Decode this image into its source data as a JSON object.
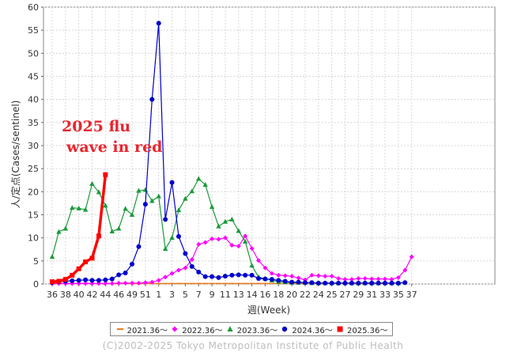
{
  "chart_data": {
    "type": "line",
    "xlabel": "週(Week)",
    "ylabel": "人/定点(Cases/sentinel)",
    "ylim": [
      0,
      60
    ],
    "yticks": [
      0,
      5,
      10,
      15,
      20,
      25,
      30,
      35,
      40,
      45,
      50,
      55,
      60
    ],
    "x_tick_labels": [
      "36",
      "38",
      "40",
      "42",
      "44",
      "46",
      "49",
      "51",
      "1",
      "3",
      "5",
      "7",
      "9",
      "11",
      "13",
      "14",
      "16",
      "18",
      "20",
      "22",
      "24",
      "25",
      "27",
      "29",
      "31",
      "33",
      "35",
      "37"
    ],
    "annotation": "2025 flu\nwave in red",
    "grid": true,
    "series": [
      {
        "name": "2021.36～",
        "color": "#f07818",
        "marker": "dash",
        "values": [
          0.1,
          0.1,
          0.1,
          0.1,
          0.1,
          0.1,
          0.1,
          0.1,
          0.1,
          0.1,
          0.1,
          0.1,
          0.1,
          0.1,
          0.1,
          0.1,
          0.1,
          0.1,
          0.1,
          0.1,
          0.1,
          0.1,
          0.1,
          0.1,
          0.1,
          0.1,
          0.1,
          0.1,
          0.1,
          0.1,
          0.1,
          0.1,
          0.1,
          0.1,
          0.1,
          0.1,
          0.1,
          0.1,
          0.1,
          0.1,
          0.1,
          0.1,
          0.1,
          0.1,
          0.1,
          0.1,
          0.1,
          0.1,
          0.1,
          0.1,
          0.1,
          0.1
        ]
      },
      {
        "name": "2022.36～",
        "color": "#ff00ff",
        "marker": "diamond",
        "values": [
          0.1,
          0.1,
          0.1,
          0.1,
          0.1,
          0.1,
          0.1,
          0.1,
          0.1,
          0.1,
          0.2,
          0.2,
          0.2,
          0.2,
          0.3,
          0.4,
          0.8,
          1.5,
          2.3,
          3,
          3.5,
          5.3,
          8.6,
          9,
          9.8,
          9.7,
          10,
          8.4,
          8.2,
          10.4,
          7.7,
          5.1,
          3.5,
          2.3,
          1.9,
          1.8,
          1.7,
          1.3,
          0.9,
          1.9,
          1.8,
          1.7,
          1.7,
          1.2,
          1,
          1,
          1.2,
          1.2,
          1.1,
          1.1,
          1.1,
          1,
          1.4,
          3,
          5.9
        ]
      },
      {
        "name": "2023.36～",
        "color": "#1a9a3a",
        "marker": "triangle",
        "values": [
          5.9,
          11.3,
          12,
          16.5,
          16.4,
          16.1,
          21.7,
          19.9,
          17,
          11.4,
          12,
          16.3,
          15,
          20.2,
          20.4,
          18,
          19,
          7.6,
          10,
          16,
          18.5,
          20.1,
          22.8,
          21.5,
          16.7,
          12.5,
          13.5,
          14,
          11.5,
          9.2,
          4,
          1.5,
          1.2,
          0.8,
          0.5,
          0.4,
          0.3,
          0.3,
          0.3,
          0.2,
          0.2,
          0.2,
          0.2,
          0.2,
          0.2,
          0.2,
          0.2,
          0.2,
          0.2,
          0.2,
          0.2,
          0.2,
          0.2
        ]
      },
      {
        "name": "2024.36～",
        "color": "#0000cc",
        "marker": "circle",
        "values": [
          0.3,
          0.5,
          0.6,
          0.7,
          0.8,
          0.9,
          0.8,
          0.8,
          0.9,
          1.1,
          2,
          2.4,
          4.3,
          8.1,
          17.3,
          40,
          56.5,
          14,
          22,
          10.3,
          6.6,
          3.8,
          2.6,
          1.6,
          1.6,
          1.4,
          1.7,
          1.9,
          2,
          1.9,
          1.9,
          1.2,
          1.1,
          1,
          0.8,
          0.6,
          0.4,
          0.4,
          0.3,
          0.3,
          0.2,
          0.2,
          0.2,
          0.2,
          0.2,
          0.2,
          0.2,
          0.2,
          0.2,
          0.2,
          0.2,
          0.2,
          0.2,
          0.3
        ]
      },
      {
        "name": "2025.36～",
        "color": "#ff0000",
        "marker": "square",
        "emphasis": true,
        "values": [
          0.5,
          0.6,
          1,
          1.9,
          3.3,
          4.8,
          5.6,
          10.4,
          23.7
        ]
      }
    ]
  },
  "copyright": "(C)2002-2025 Tokyo Metropolitan Institute of Public Health"
}
